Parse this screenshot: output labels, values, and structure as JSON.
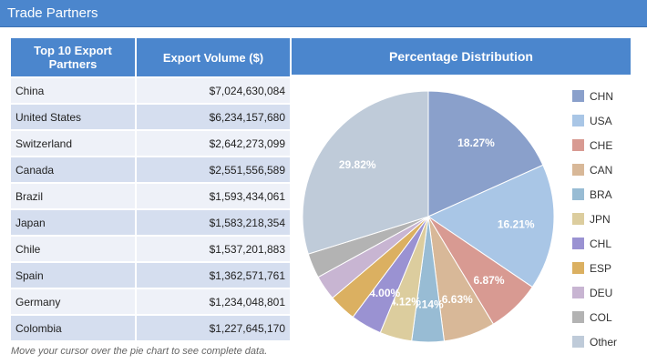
{
  "header": {
    "title": "Trade Partners"
  },
  "table": {
    "col1": "Top 10 Export Partners",
    "col2": "Export Volume ($)",
    "rows": [
      {
        "name": "China",
        "value": "$7,024,630,084"
      },
      {
        "name": "United States",
        "value": "$6,234,157,680"
      },
      {
        "name": "Switzerland",
        "value": "$2,642,273,099"
      },
      {
        "name": "Canada",
        "value": "$2,551,556,589"
      },
      {
        "name": "Brazil",
        "value": "$1,593,434,061"
      },
      {
        "name": "Japan",
        "value": "$1,583,218,354"
      },
      {
        "name": "Chile",
        "value": "$1,537,201,883"
      },
      {
        "name": "Spain",
        "value": "$1,362,571,761"
      },
      {
        "name": "Germany",
        "value": "$1,234,048,801"
      },
      {
        "name": "Colombia",
        "value": "$1,227,645,170"
      }
    ]
  },
  "note": "Move your cursor over the pie chart to see complete data.",
  "chart_data": {
    "type": "pie",
    "title": "Percentage Distribution",
    "legend_position": "right",
    "slices": [
      {
        "label": "CHN",
        "value": 18.27,
        "color": "#8aa0cb",
        "data_label": "18.27%"
      },
      {
        "label": "USA",
        "value": 16.21,
        "color": "#a9c6e6",
        "data_label": "16.21%"
      },
      {
        "label": "CHE",
        "value": 6.87,
        "color": "#d89a92",
        "data_label": "6.87%"
      },
      {
        "label": "CAN",
        "value": 6.63,
        "color": "#d8b898",
        "data_label": "6.63%"
      },
      {
        "label": "BRA",
        "value": 4.14,
        "color": "#98bcd4",
        "data_label": "4.14%"
      },
      {
        "label": "JPN",
        "value": 4.12,
        "color": "#dccd9e",
        "data_label": "4.12%"
      },
      {
        "label": "CHL",
        "value": 4.0,
        "color": "#9a92d2",
        "data_label": "4.00%"
      },
      {
        "label": "ESP",
        "value": 3.54,
        "color": "#dbb061",
        "data_label": ""
      },
      {
        "label": "DEU",
        "value": 3.21,
        "color": "#c8b5d2",
        "data_label": ""
      },
      {
        "label": "COL",
        "value": 3.19,
        "color": "#b3b3b3",
        "data_label": ""
      },
      {
        "label": "Other",
        "value": 29.82,
        "color": "#bfcbd9",
        "data_label": "29.82%"
      }
    ]
  }
}
